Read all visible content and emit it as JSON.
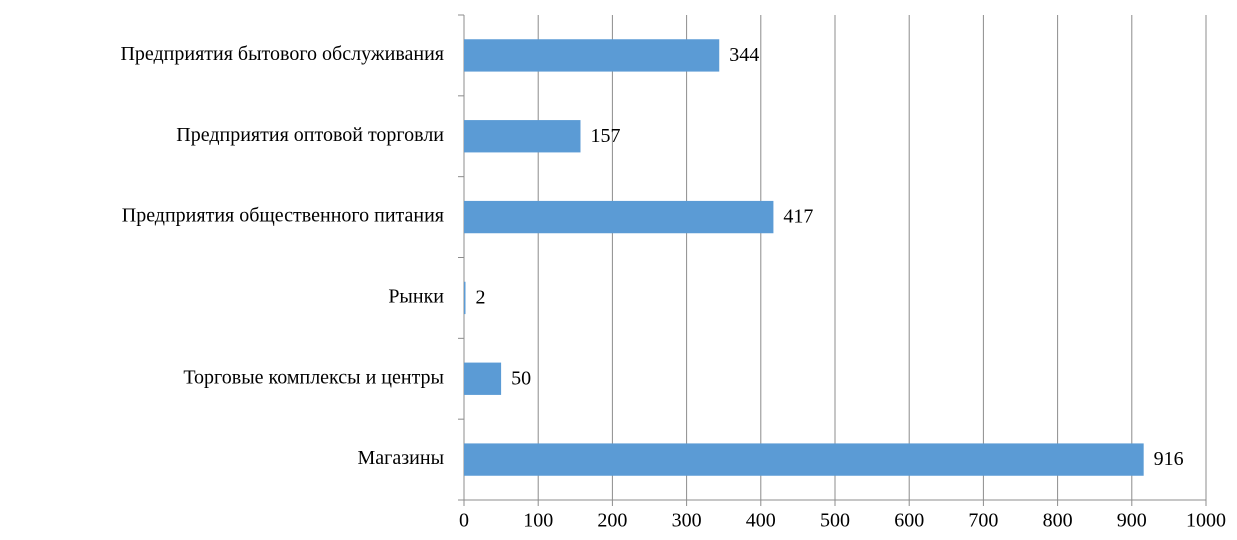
{
  "chart_data": {
    "type": "bar",
    "orientation": "horizontal",
    "categories": [
      "Предприятия бытового обслуживания",
      "Предприятия оптовой торговли",
      "Предприятия общественного питания",
      "Рынки",
      "Торговые комплексы и центры",
      "Магазины"
    ],
    "values": [
      344,
      157,
      417,
      2,
      50,
      916
    ],
    "color": "#5b9bd5",
    "xlim": [
      0,
      1000
    ],
    "xticks": [
      0,
      100,
      200,
      300,
      400,
      500,
      600,
      700,
      800,
      900,
      1000
    ],
    "grid": true
  }
}
